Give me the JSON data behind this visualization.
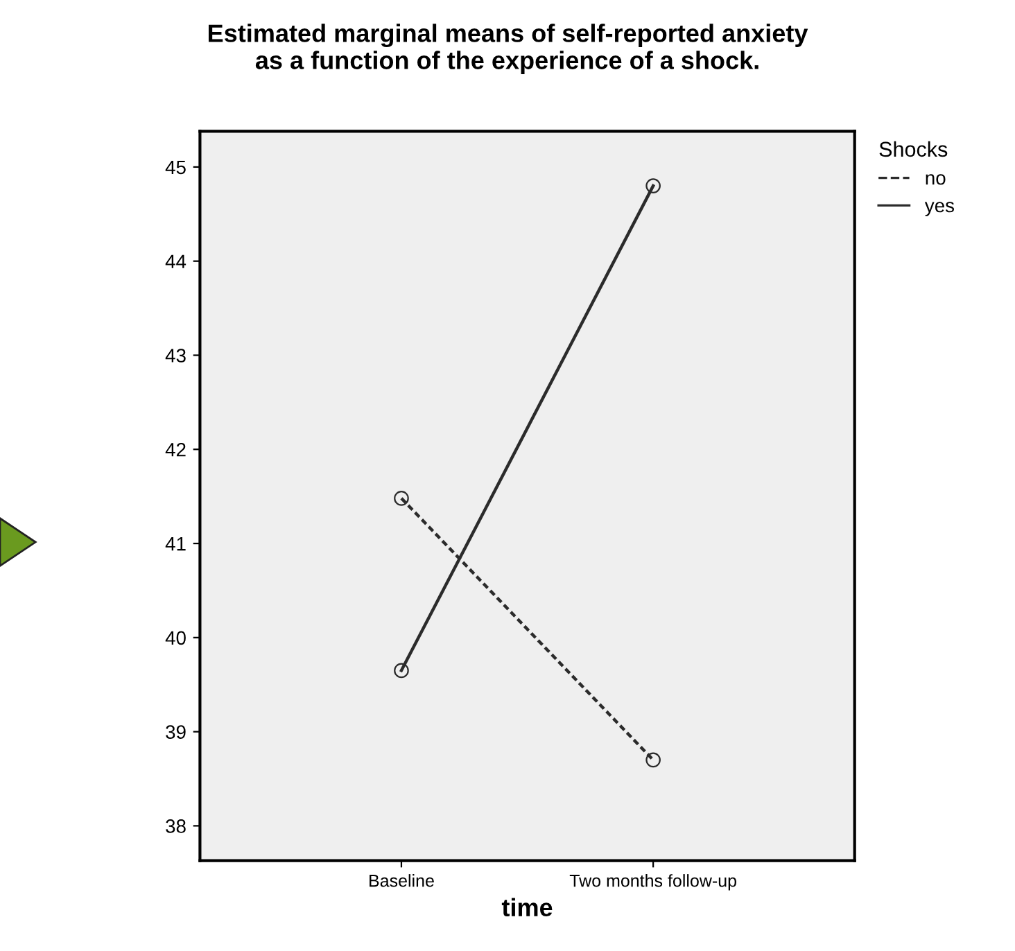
{
  "chart_data": {
    "type": "line",
    "title": "Estimated marginal means of self-reported anxiety\nas a function of the experience of a shock.",
    "xlabel": "time",
    "legend_title": "Shocks",
    "categories": [
      "Baseline",
      "Two months follow-up"
    ],
    "series": [
      {
        "name": "no",
        "color": "#2b2b2b",
        "values": [
          41.48,
          38.7
        ],
        "line_style": "dotted"
      },
      {
        "name": "yes",
        "color": "#2b2b2b",
        "values": [
          39.65,
          44.8
        ],
        "line_style": "solid"
      }
    ],
    "ylim": [
      37.63,
      45.38
    ],
    "yticks": [
      38,
      39,
      40,
      41,
      42,
      43,
      44,
      45
    ],
    "marker": "circle",
    "grid": false,
    "legend": "top right"
  }
}
